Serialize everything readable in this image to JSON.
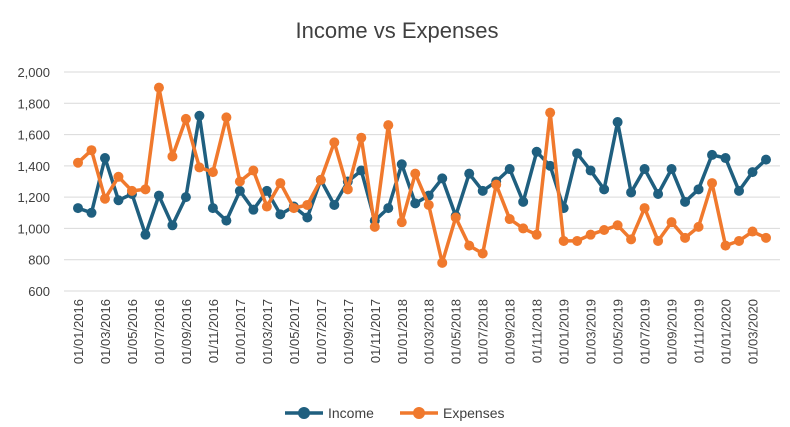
{
  "chart_data": {
    "type": "line",
    "title": "Income vs Expenses",
    "xlabel": "",
    "ylabel": "",
    "ylim": [
      600,
      2000
    ],
    "yticks": [
      600,
      800,
      1000,
      1200,
      1400,
      1600,
      1800,
      2000
    ],
    "ytick_labels": [
      "600",
      "800",
      "1,000",
      "1,200",
      "1,400",
      "1,600",
      "1,800",
      "2,000"
    ],
    "x": [
      "01/01/2016",
      "01/02/2016",
      "01/03/2016",
      "01/04/2016",
      "01/05/2016",
      "01/06/2016",
      "01/07/2016",
      "01/08/2016",
      "01/09/2016",
      "01/10/2016",
      "01/11/2016",
      "01/12/2016",
      "01/01/2017",
      "01/02/2017",
      "01/03/2017",
      "01/04/2017",
      "01/05/2017",
      "01/06/2017",
      "01/07/2017",
      "01/08/2017",
      "01/09/2017",
      "01/10/2017",
      "01/11/2017",
      "01/12/2017",
      "01/01/2018",
      "01/02/2018",
      "01/03/2018",
      "01/04/2018",
      "01/05/2018",
      "01/06/2018",
      "01/07/2018",
      "01/08/2018",
      "01/09/2018",
      "01/10/2018",
      "01/11/2018",
      "01/12/2018",
      "01/01/2019",
      "01/02/2019",
      "01/03/2019",
      "01/04/2019",
      "01/05/2019",
      "01/06/2019",
      "01/07/2019",
      "01/08/2019",
      "01/09/2019",
      "01/10/2019",
      "01/11/2019",
      "01/12/2019",
      "01/01/2020",
      "01/02/2020",
      "01/03/2020",
      "01/04/2020"
    ],
    "x_tick_labels": [
      "01/01/2016",
      "01/03/2016",
      "01/05/2016",
      "01/07/2016",
      "01/09/2016",
      "01/11/2016",
      "01/01/2017",
      "01/03/2017",
      "01/05/2017",
      "01/07/2017",
      "01/09/2017",
      "01/11/2017",
      "01/01/2018",
      "01/03/2018",
      "01/05/2018",
      "01/07/2018",
      "01/09/2018",
      "01/11/2018",
      "01/01/2019",
      "01/03/2019",
      "01/05/2019",
      "01/07/2019",
      "01/09/2019",
      "01/11/2019",
      "01/01/2020",
      "01/03/2020"
    ],
    "series": [
      {
        "name": "Income",
        "color": "#1f5f7f",
        "values": [
          1130,
          1100,
          1450,
          1180,
          1220,
          960,
          1210,
          1020,
          1200,
          1720,
          1130,
          1050,
          1240,
          1120,
          1240,
          1090,
          1140,
          1070,
          1310,
          1150,
          1300,
          1370,
          1050,
          1130,
          1410,
          1160,
          1210,
          1320,
          1080,
          1350,
          1240,
          1300,
          1380,
          1170,
          1490,
          1400,
          1130,
          1480,
          1370,
          1250,
          1680,
          1230,
          1380,
          1220,
          1380,
          1170,
          1250,
          1470,
          1450,
          1240,
          1360,
          1440
        ]
      },
      {
        "name": "Expenses",
        "color": "#f0792d",
        "values": [
          1420,
          1500,
          1190,
          1330,
          1240,
          1250,
          1900,
          1460,
          1700,
          1390,
          1360,
          1710,
          1300,
          1370,
          1140,
          1290,
          1130,
          1150,
          1310,
          1550,
          1250,
          1580,
          1010,
          1660,
          1040,
          1350,
          1150,
          780,
          1070,
          890,
          840,
          1280,
          1060,
          1000,
          960,
          1740,
          920,
          920,
          960,
          990,
          1020,
          930,
          1130,
          920,
          1040,
          940,
          1010,
          1290,
          890,
          920,
          980,
          940
        ]
      }
    ],
    "grid": "horizontal",
    "legend": "bottom"
  }
}
